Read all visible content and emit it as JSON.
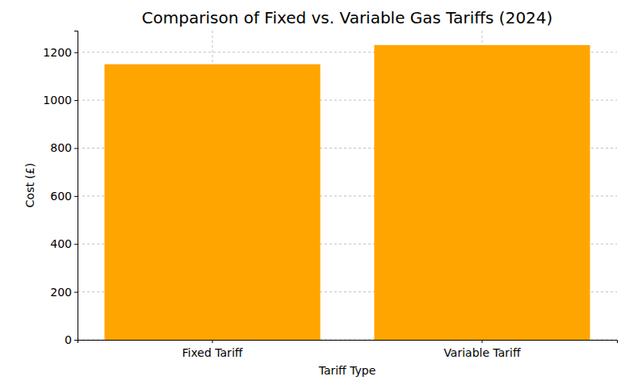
{
  "chart_data": {
    "type": "bar",
    "title": "Comparison of Fixed vs. Variable Gas Tariffs (2024)",
    "x_label": "Tariff Type",
    "y_label": "Cost (£)",
    "categories": [
      "Fixed Tariff",
      "Variable Tariff"
    ],
    "values": [
      1150,
      1230
    ],
    "color": "#ffa500",
    "ylim": [
      0,
      1290
    ],
    "yticks": [
      0,
      200,
      400,
      600,
      800,
      1000,
      1200
    ],
    "grid": true
  }
}
